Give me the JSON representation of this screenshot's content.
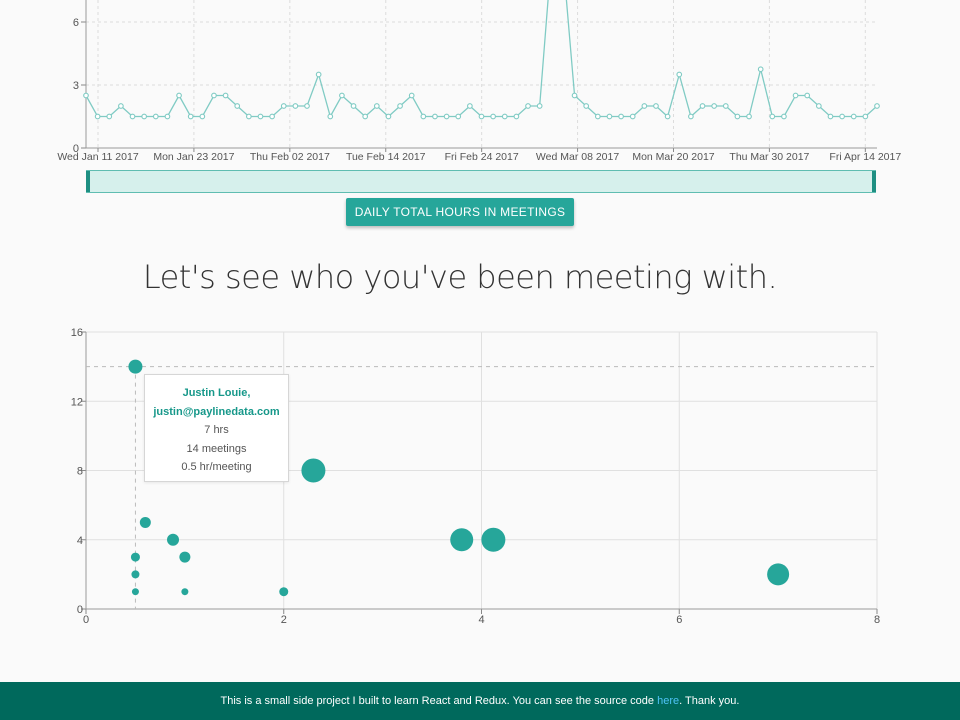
{
  "line_chart": {
    "chart_data": {
      "type": "line",
      "title": "",
      "xlabel": "",
      "ylabel": "",
      "ylim": [
        0,
        7
      ],
      "y_ticks": [
        0,
        3,
        6
      ],
      "x_tick_labels": [
        "Wed Jan 11 2017",
        "Mon Jan 23 2017",
        "Thu Feb 02 2017",
        "Tue Feb 14 2017",
        "Fri Feb 24 2017",
        "Wed Mar 08 2017",
        "Mon Mar 20 2017",
        "Thu Mar 30 2017",
        "Fri Apr 14 2017"
      ],
      "grid": true,
      "color": "#80cbc4",
      "values": [
        2.5,
        1.5,
        1.5,
        2,
        1.5,
        1.5,
        1.5,
        1.5,
        2.5,
        1.5,
        1.5,
        2.5,
        2.5,
        2,
        1.5,
        1.5,
        1.5,
        2,
        2,
        2,
        3.5,
        1.5,
        2.5,
        2,
        1.5,
        2,
        1.5,
        2,
        2.5,
        1.5,
        1.5,
        1.5,
        1.5,
        2,
        1.5,
        1.5,
        1.5,
        1.5,
        2,
        2,
        9,
        9,
        2.5,
        2,
        1.5,
        1.5,
        1.5,
        1.5,
        2,
        2,
        1.5,
        3.5,
        1.5,
        2,
        2,
        2,
        1.5,
        1.5,
        3.75,
        1.5,
        1.5,
        2.5,
        2.5,
        2,
        1.5,
        1.5,
        1.5,
        1.5,
        2
      ]
    }
  },
  "toggle_button": {
    "label": "DAILY TOTAL HOURS IN MEETINGS"
  },
  "section_heading": "Let's see who you've been meeting with.",
  "scatter_chart": {
    "chart_data": {
      "type": "scatter",
      "title": "",
      "xlabel": "",
      "ylabel": "",
      "xlim": [
        0,
        8
      ],
      "ylim": [
        0,
        16
      ],
      "x_ticks": [
        0,
        2,
        4,
        6,
        8
      ],
      "y_ticks": [
        0,
        4,
        8,
        12,
        16
      ],
      "grid": true,
      "color": "#26a69a",
      "points": [
        {
          "x": 0.5,
          "y": 14,
          "size": 7,
          "highlighted": true
        },
        {
          "x": 2.3,
          "y": 8,
          "size": 12
        },
        {
          "x": 0.6,
          "y": 5,
          "size": 5.5
        },
        {
          "x": 0.88,
          "y": 4,
          "size": 6
        },
        {
          "x": 1.0,
          "y": 3,
          "size": 5.5
        },
        {
          "x": 0.5,
          "y": 3,
          "size": 4.5
        },
        {
          "x": 0.5,
          "y": 2,
          "size": 4
        },
        {
          "x": 0.5,
          "y": 1,
          "size": 3.5
        },
        {
          "x": 1.0,
          "y": 1,
          "size": 3.5
        },
        {
          "x": 2.0,
          "y": 1,
          "size": 4.5
        },
        {
          "x": 3.8,
          "y": 4,
          "size": 11.5
        },
        {
          "x": 4.12,
          "y": 4,
          "size": 12
        },
        {
          "x": 7.0,
          "y": 2,
          "size": 11
        }
      ]
    },
    "tooltip": {
      "name": "Justin Louie,",
      "email": "justin@paylinedata.com",
      "hours": "7 hrs",
      "meetings": "14 meetings",
      "rate": "0.5 hr/meeting"
    }
  },
  "footer": {
    "text_before": "This is a small side project I built to learn React and Redux. You can see the source code ",
    "link_text": "here",
    "text_after": ". Thank you."
  }
}
